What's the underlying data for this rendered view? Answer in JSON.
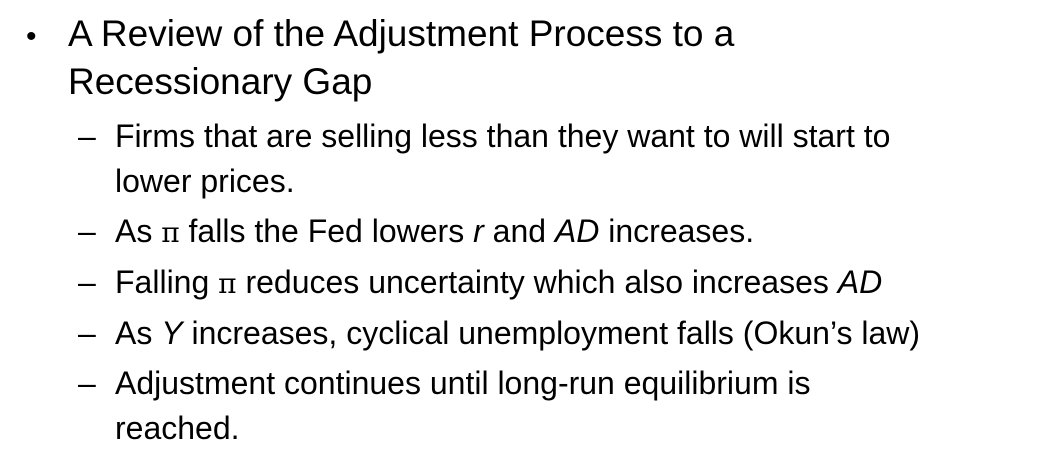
{
  "heading": {
    "bullet": "•",
    "line1": "A Review of the Adjustment Process to a",
    "line2": "Recessionary Gap"
  },
  "dash": "–",
  "items": [
    {
      "line1": "Firms that are selling less than they want to will start to",
      "line2": "lower prices."
    },
    {
      "t1": "As ",
      "pi": "π",
      "t2": " falls the Fed lowers ",
      "r": "r",
      "t3": " and ",
      "ad": "AD",
      "t4": " increases."
    },
    {
      "t1": "Falling ",
      "pi": "π",
      "t2": " reduces uncertainty which also increases ",
      "ad": "AD"
    },
    {
      "t1": "As ",
      "y": "Y",
      "t2": " increases, cyclical unemployment falls (Okun’s law)"
    },
    {
      "line1": "Adjustment continues until long-run equilibrium is",
      "line2": "reached."
    }
  ]
}
